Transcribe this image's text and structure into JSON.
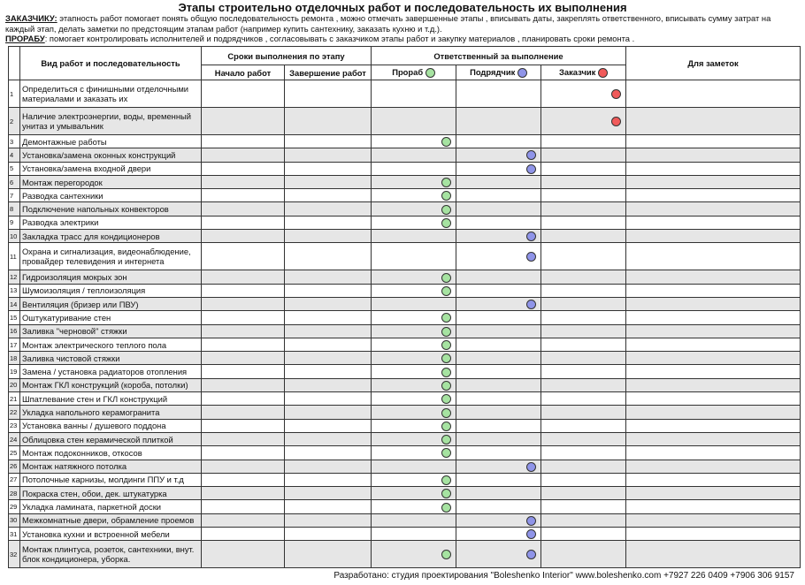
{
  "header": {
    "title": "Этапы строительно отделочных работ и последовательность их выполнения",
    "client_label": "ЗАКАЗЧИКУ:",
    "client_text": " этапность работ помогает  понять общую последовательность ремонта  , можно отмечать завершенные этапы , вписывать даты, закреплять ответственного, вписывать сумму затрат на каждый этап, делать заметки по предстоящим этапам работ   (например купить сантехнику, заказать кухню и т.д.).",
    "foreman_label": "ПРОРАБУ",
    "foreman_text": ": помогает контролировать исполнителей и подрядчиков , согласовывать с заказчиком этапы работ и закупку материалов  , планировать сроки ремонта ."
  },
  "table": {
    "head": {
      "work": "Вид работ и последовательность",
      "dates": "Сроки выполнения по этапу",
      "start": "Начало работ",
      "end": "Завершение работ",
      "responsible": "Ответственный за выполнение",
      "roles": [
        "Прораб",
        "Подрядчик",
        "Заказчик"
      ],
      "notes": "Для заметок"
    },
    "rows": [
      {
        "n": "1",
        "text": "Определиться с финишными отделочными материалами и заказать их",
        "marks": [
          false,
          false,
          true
        ]
      },
      {
        "n": "2",
        "text": "Наличие электроэнергии, воды, временный унитаз и умывальник",
        "marks": [
          false,
          false,
          true
        ]
      },
      {
        "n": "3",
        "text": "Демонтажные работы",
        "marks": [
          true,
          false,
          false
        ]
      },
      {
        "n": "4",
        "text": "Установка/замена оконных конструкций",
        "marks": [
          false,
          true,
          false
        ]
      },
      {
        "n": "5",
        "text": "Установка/замена входной двери",
        "marks": [
          false,
          true,
          false
        ]
      },
      {
        "n": "6",
        "text": "Монтаж перегородок",
        "marks": [
          true,
          false,
          false
        ]
      },
      {
        "n": "7",
        "text": "Разводка сантехники",
        "marks": [
          true,
          false,
          false
        ]
      },
      {
        "n": "8",
        "text": "Подключение напольных конвекторов",
        "marks": [
          true,
          false,
          false
        ]
      },
      {
        "n": "9",
        "text": "Разводка электрики",
        "marks": [
          true,
          false,
          false
        ]
      },
      {
        "n": "10",
        "text": "Закладка трасс для кондиционеров",
        "marks": [
          false,
          true,
          false
        ]
      },
      {
        "n": "11",
        "text": "Охрана и сигнализация, видеонаблюдение, провайдер телевидения и интернета",
        "marks": [
          false,
          true,
          false
        ]
      },
      {
        "n": "12",
        "text": "Гидроизоляция мокрых зон",
        "marks": [
          true,
          false,
          false
        ]
      },
      {
        "n": "13",
        "text": "Шумоизоляция / теплоизоляция",
        "marks": [
          true,
          false,
          false
        ]
      },
      {
        "n": "14",
        "text": "Вентиляция (бризер или ПВУ)",
        "marks": [
          false,
          true,
          false
        ]
      },
      {
        "n": "15",
        "text": "Оштукатуривание стен",
        "marks": [
          true,
          false,
          false
        ]
      },
      {
        "n": "16",
        "text": "Заливка \"черновой\" стяжки",
        "marks": [
          true,
          false,
          false
        ]
      },
      {
        "n": "17",
        "text": "Монтаж электрического теплого пола",
        "marks": [
          true,
          false,
          false
        ]
      },
      {
        "n": "18",
        "text": "Заливка чистовой стяжки",
        "marks": [
          true,
          false,
          false
        ]
      },
      {
        "n": "19",
        "text": "Замена / установка радиаторов отопления",
        "marks": [
          true,
          false,
          false
        ]
      },
      {
        "n": "20",
        "text": "Монтаж ГКЛ конструкций (короба, потолки)",
        "marks": [
          true,
          false,
          false
        ]
      },
      {
        "n": "21",
        "text": "Шпатлевание стен и ГКЛ конструкций",
        "marks": [
          true,
          false,
          false
        ]
      },
      {
        "n": "22",
        "text": "Укладка напольного керамогранита",
        "marks": [
          true,
          false,
          false
        ]
      },
      {
        "n": "23",
        "text": "Установка ванны  / душевого поддона",
        "marks": [
          true,
          false,
          false
        ]
      },
      {
        "n": "24",
        "text": "Облицовка стен керамической плиткой",
        "marks": [
          true,
          false,
          false
        ]
      },
      {
        "n": "25",
        "text": "Монтаж подоконников, откосов",
        "marks": [
          true,
          false,
          false
        ]
      },
      {
        "n": "26",
        "text": "Монтаж натяжного потолка",
        "marks": [
          false,
          true,
          false
        ]
      },
      {
        "n": "27",
        "text": "Потолочные карнизы, молдинги ППУ и т.д",
        "marks": [
          true,
          false,
          false
        ]
      },
      {
        "n": "28",
        "text": "Покраска стен, обои, дек. штукатурка",
        "marks": [
          true,
          false,
          false
        ]
      },
      {
        "n": "29",
        "text": "Укладка ламината, паркетной доски",
        "marks": [
          true,
          false,
          false
        ]
      },
      {
        "n": "30",
        "text": "Межкомнатные двери, обрамление проемов",
        "marks": [
          false,
          true,
          false
        ]
      },
      {
        "n": "31",
        "text": "Установка кухни и встроенной мебели",
        "marks": [
          false,
          true,
          false
        ]
      },
      {
        "n": "32",
        "text": "Монтаж плинтуса, розеток, сантехники, внут. блок кондиционера, уборка.",
        "marks": [
          true,
          true,
          false
        ]
      }
    ]
  },
  "footer": "Разработано: студия проектирования \"Boleshenko Interior\" www.boleshenko.com    +7927 226 0409    +7906 306 9157"
}
